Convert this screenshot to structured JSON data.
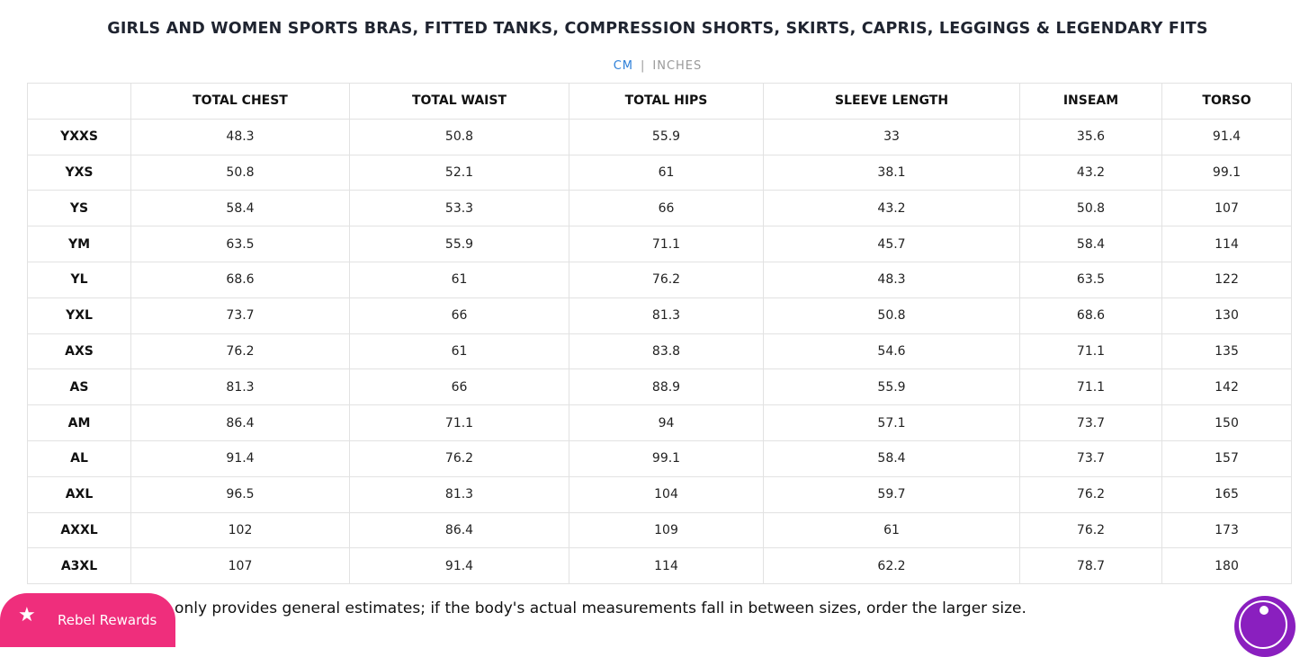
{
  "title": "GIRLS AND WOMEN SPORTS BRAS, FITTED TANKS, COMPRESSION SHORTS, SKIRTS, CAPRIS, LEGGINGS & LEGENDARY FITS",
  "units": {
    "cm": "CM",
    "separator": "|",
    "inches": "INCHES",
    "selected": "CM",
    "accent": "#2d7fd8"
  },
  "table": {
    "headers": [
      "",
      "TOTAL CHEST",
      "TOTAL WAIST",
      "TOTAL HIPS",
      "SLEEVE LENGTH",
      "INSEAM",
      "TORSO"
    ],
    "rows": [
      [
        "YXXS",
        "48.3",
        "50.8",
        "55.9",
        "33",
        "35.6",
        "91.4"
      ],
      [
        "YXS",
        "50.8",
        "52.1",
        "61",
        "38.1",
        "43.2",
        "99.1"
      ],
      [
        "YS",
        "58.4",
        "53.3",
        "66",
        "43.2",
        "50.8",
        "107"
      ],
      [
        "YM",
        "63.5",
        "55.9",
        "71.1",
        "45.7",
        "58.4",
        "114"
      ],
      [
        "YL",
        "68.6",
        "61",
        "76.2",
        "48.3",
        "63.5",
        "122"
      ],
      [
        "YXL",
        "73.7",
        "66",
        "81.3",
        "50.8",
        "68.6",
        "130"
      ],
      [
        "AXS",
        "76.2",
        "61",
        "83.8",
        "54.6",
        "71.1",
        "135"
      ],
      [
        "AS",
        "81.3",
        "66",
        "88.9",
        "55.9",
        "71.1",
        "142"
      ],
      [
        "AM",
        "86.4",
        "71.1",
        "94",
        "57.1",
        "73.7",
        "150"
      ],
      [
        "AL",
        "91.4",
        "76.2",
        "99.1",
        "58.4",
        "73.7",
        "157"
      ],
      [
        "AXL",
        "96.5",
        "81.3",
        "104",
        "59.7",
        "76.2",
        "165"
      ],
      [
        "AXXL",
        "102",
        "86.4",
        "109",
        "61",
        "76.2",
        "173"
      ],
      [
        "A3XL",
        "107",
        "91.4",
        "114",
        "62.2",
        "78.7",
        "180"
      ]
    ]
  },
  "note": "rt only provides general estimates; if the body's actual measurements fall in between sizes, order the larger size.",
  "rewards": {
    "label": "Rebel Rewards",
    "icon": "star-icon",
    "color": "#ef2e7c"
  },
  "accessibility": {
    "icon": "accessibility-icon",
    "color": "#8a1fbf"
  }
}
